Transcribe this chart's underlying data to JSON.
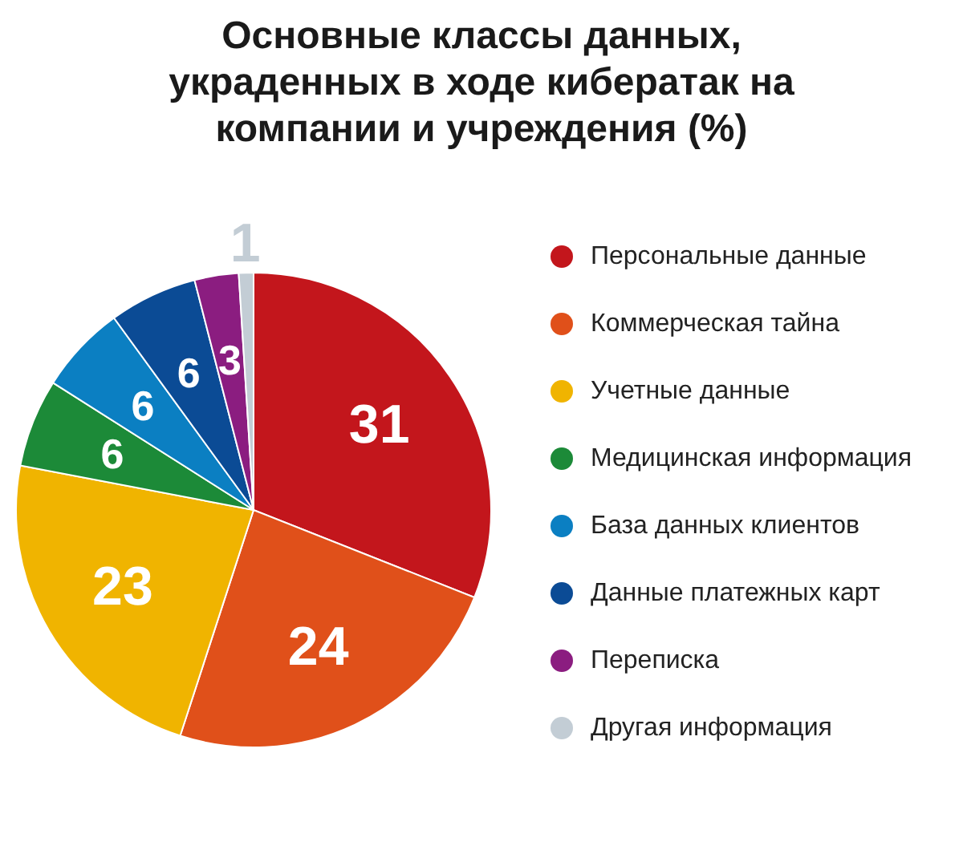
{
  "chart_data": {
    "type": "pie",
    "title": "Основные классы данных, украденных в ходе кибератак на компании и учреждения (%)",
    "categories": [
      "Персональные данные",
      "Коммерческая тайна",
      "Учетные данные",
      "Медицинская информация",
      "База данных клиентов",
      "Данные платежных карт",
      "Переписка",
      "Другая информация"
    ],
    "values": [
      31,
      24,
      23,
      6,
      6,
      6,
      3,
      1
    ],
    "colors": [
      "#c3161c",
      "#e0501a",
      "#f0b400",
      "#1c8a38",
      "#0b7fc2",
      "#0b4b95",
      "#8b1d80",
      "#c3cdd5"
    ],
    "data_labels": true,
    "legend": "right"
  }
}
